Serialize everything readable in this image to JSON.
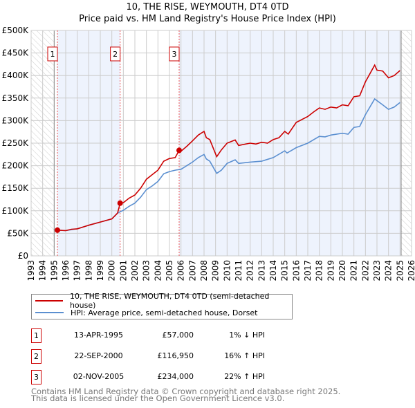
{
  "title_line1": "10, THE RISE, WEYMOUTH, DT4 0TD",
  "title_line2": "Price paid vs. HM Land Registry's House Price Index (HPI)",
  "colors": {
    "property": "#cc0000",
    "hpi": "#5b8fd0",
    "shade": "#eef3fd"
  },
  "chart_data": {
    "type": "line",
    "title": "10, THE RISE, WEYMOUTH, DT4 0TD — Price paid vs. HM Land Registry's House Price Index (HPI)",
    "xlim": [
      1993,
      2026
    ],
    "ylim": [
      0,
      500000
    ],
    "x_ticks": [
      "1993",
      "1994",
      "1995",
      "1996",
      "1997",
      "1998",
      "1999",
      "2000",
      "2001",
      "2002",
      "2003",
      "2004",
      "2005",
      "2006",
      "2007",
      "2008",
      "2009",
      "2010",
      "2011",
      "2012",
      "2013",
      "2014",
      "2015",
      "2016",
      "2017",
      "2018",
      "2019",
      "2020",
      "2021",
      "2022",
      "2023",
      "2024",
      "2025",
      "2026"
    ],
    "y_ticks": [
      {
        "v": 0,
        "label": "£0"
      },
      {
        "v": 50000,
        "label": "£50K"
      },
      {
        "v": 100000,
        "label": "£100K"
      },
      {
        "v": 150000,
        "label": "£150K"
      },
      {
        "v": 200000,
        "label": "£200K"
      },
      {
        "v": 250000,
        "label": "£250K"
      },
      {
        "v": 300000,
        "label": "£300K"
      },
      {
        "v": 350000,
        "label": "£350K"
      },
      {
        "v": 400000,
        "label": "£400K"
      },
      {
        "v": 450000,
        "label": "£450K"
      },
      {
        "v": 500000,
        "label": "£500K"
      }
    ],
    "grid": true,
    "hatched_ranges": [
      [
        1993,
        1995.0
      ],
      [
        2025.1,
        2026
      ]
    ],
    "series": [
      {
        "name": "10, THE RISE, WEYMOUTH, DT4 0TD (semi-detached house)",
        "color": "#cc0000",
        "x": [
          1995.28,
          1996,
          1996.5,
          1997,
          1998,
          1999,
          2000,
          2000.5,
          2000.72,
          2001,
          2001.5,
          2002,
          2002.5,
          2003,
          2003.5,
          2004,
          2004.5,
          2005,
          2005.5,
          2005.84,
          2006,
          2006.5,
          2007,
          2007.5,
          2008,
          2008.2,
          2008.5,
          2009.1,
          2009.5,
          2010,
          2010.7,
          2011,
          2012,
          2012.5,
          2013,
          2013.5,
          2014,
          2014.5,
          2015,
          2015.3,
          2016,
          2017,
          2017.5,
          2018,
          2018.5,
          2019,
          2019.5,
          2020,
          2020.5,
          2021,
          2021.5,
          2022,
          2022.8,
          2023,
          2023.5,
          2024,
          2024.5,
          2025
        ],
        "y": [
          57000,
          56000,
          59000,
          60000,
          68000,
          75000,
          82000,
          95000,
          116950,
          118000,
          128000,
          135000,
          150000,
          170000,
          180000,
          190000,
          210000,
          216000,
          218000,
          234000,
          232000,
          243000,
          255000,
          268000,
          276000,
          262000,
          258000,
          220000,
          235000,
          250000,
          257000,
          245000,
          250000,
          248000,
          252000,
          250000,
          258000,
          262000,
          276000,
          270000,
          296000,
          309000,
          319000,
          328000,
          325000,
          330000,
          328000,
          335000,
          333000,
          353000,
          355000,
          386000,
          423000,
          412000,
          410000,
          395000,
          400000,
          411000
        ]
      },
      {
        "name": "HPI: Average price, semi-detached house, Dorset",
        "color": "#5b8fd0",
        "x": [
          1995.28,
          1996,
          1997,
          1998,
          1999,
          2000,
          2000.5,
          2001,
          2001.5,
          2002,
          2002.5,
          2003,
          2003.5,
          2004,
          2004.5,
          2005,
          2005.5,
          2006,
          2006.5,
          2007,
          2007.5,
          2008,
          2008.2,
          2008.5,
          2009.1,
          2009.5,
          2010,
          2010.7,
          2011,
          2012,
          2013,
          2014,
          2015,
          2015.2,
          2016,
          2017,
          2018,
          2018.5,
          2019,
          2020,
          2020.5,
          2021,
          2021.5,
          2022,
          2022.8,
          2023.5,
          2024,
          2024.5,
          2025
        ],
        "y": [
          57000,
          56000,
          60000,
          68000,
          75000,
          82000,
          95000,
          101000,
          110000,
          117000,
          130000,
          147000,
          155000,
          165000,
          182000,
          187000,
          190000,
          192000,
          200000,
          208000,
          218000,
          225000,
          215000,
          210000,
          183000,
          190000,
          205000,
          213000,
          205000,
          208000,
          210000,
          218000,
          233000,
          228000,
          240000,
          250000,
          265000,
          264000,
          268000,
          272000,
          270000,
          285000,
          287000,
          313000,
          348000,
          335000,
          325000,
          330000,
          340000
        ]
      }
    ],
    "sales": [
      {
        "n": "1",
        "x": 1995.28,
        "y": 57000,
        "date": "13-APR-1995",
        "price": "£57,000",
        "hpi": "1% ↓ HPI"
      },
      {
        "n": "2",
        "x": 2000.72,
        "y": 116950,
        "date": "22-SEP-2000",
        "price": "£116,950",
        "hpi": "16% ↑ HPI"
      },
      {
        "n": "3",
        "x": 2005.84,
        "y": 234000,
        "date": "02-NOV-2005",
        "price": "£234,000",
        "hpi": "22% ↑ HPI"
      }
    ]
  },
  "legend": {
    "property": "10, THE RISE, WEYMOUTH, DT4 0TD (semi-detached house)",
    "hpi": "HPI: Average price, semi-detached house, Dorset"
  },
  "footer": {
    "line1": "Contains HM Land Registry data © Crown copyright and database right 2025.",
    "line2": "This data is licensed under the Open Government Licence v3.0."
  }
}
